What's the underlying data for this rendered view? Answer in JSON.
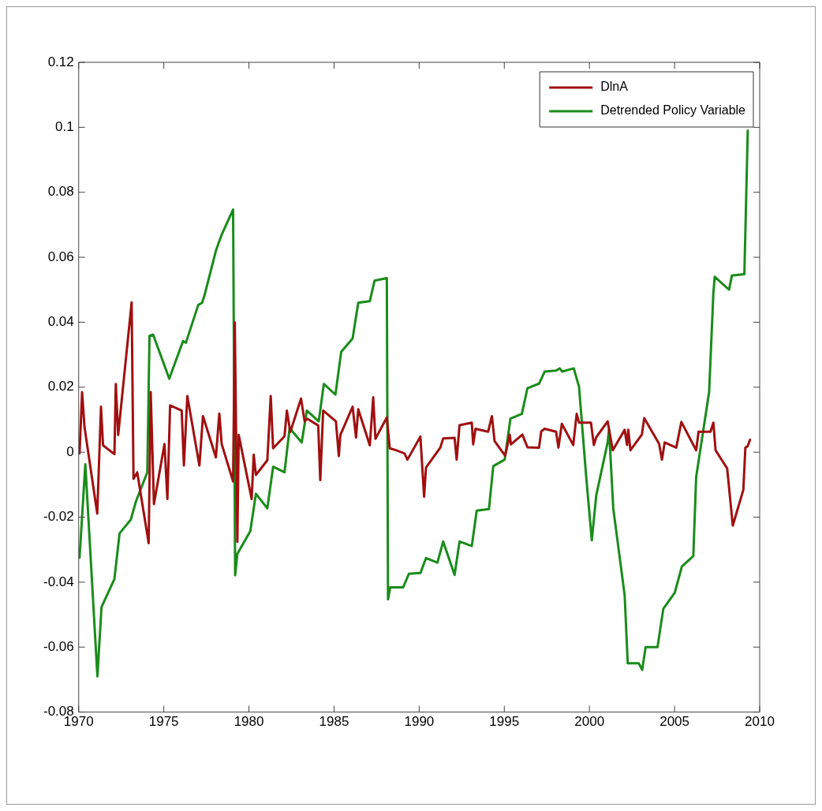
{
  "chart_data": {
    "type": "line",
    "xlim": [
      1970,
      2010
    ],
    "xticks": [
      1970,
      1975,
      1980,
      1985,
      1990,
      1995,
      2000,
      2005,
      2010
    ],
    "ylim": [
      -0.08,
      0.12
    ],
    "yticks": [
      -0.08,
      -0.06,
      -0.04,
      -0.02,
      0,
      0.02,
      0.04,
      0.06,
      0.08,
      0.1,
      0.12
    ],
    "grid": false,
    "legend": "top right",
    "marker": "none",
    "line_style": "solid",
    "series": [
      {
        "name": "DlnA",
        "color": "#a01010",
        "x": [
          1970.05,
          1970.2,
          1970.34,
          1971.09,
          1971.31,
          1971.43,
          1972.1,
          1972.18,
          1972.32,
          1973.11,
          1973.22,
          1973.44,
          1974.11,
          1974.23,
          1974.42,
          1975.04,
          1975.21,
          1975.37,
          1976.05,
          1976.18,
          1976.38,
          1977.09,
          1977.3,
          1978.06,
          1978.26,
          1978.4,
          1979.07,
          1979.17,
          1979.32,
          1979.4,
          1980.16,
          1980.28,
          1980.41,
          1981.08,
          1981.28,
          1981.42,
          1982.09,
          1982.23,
          1982.43,
          1983.06,
          1983.27,
          1983.43,
          1984.07,
          1984.19,
          1984.36,
          1985.11,
          1985.28,
          1985.37,
          1986.09,
          1986.29,
          1986.42,
          1987.1,
          1987.3,
          1987.43,
          1988.1,
          1988.27,
          1988.64,
          1989.14,
          1989.31,
          1990.07,
          1990.29,
          1990.4,
          1991.24,
          1991.41,
          1992.08,
          1992.2,
          1992.37,
          1993.09,
          1993.17,
          1993.31,
          1994.05,
          1994.27,
          1994.43,
          1995.05,
          1995.32,
          1995.39,
          1996.06,
          1996.36,
          1997.04,
          1997.17,
          1997.37,
          1998.04,
          1998.18,
          1998.38,
          1999.05,
          1999.25,
          1999.39,
          2000.09,
          2000.26,
          2000.4,
          2001.07,
          2001.37,
          2002.07,
          2002.21,
          2002.28,
          2002.41,
          2003.08,
          2003.22,
          2004.09,
          2004.26,
          2004.42,
          2005.1,
          2005.4,
          2006.27,
          2006.41,
          2007.11,
          2007.28,
          2007.41,
          2008.09,
          2008.42,
          2009.04,
          2009.16,
          2009.29,
          2009.43
        ],
        "values": [
          -0.0004,
          0.0185,
          0.0078,
          -0.0189,
          0.014,
          0.0021,
          -0.0006,
          0.021,
          0.0053,
          0.0461,
          -0.0082,
          -0.0062,
          -0.028,
          0.0185,
          -0.016,
          0.0025,
          -0.0144,
          0.0144,
          0.0128,
          -0.0041,
          0.0173,
          -0.0041,
          0.0111,
          -0.0016,
          0.0119,
          0.0025,
          -0.009,
          0.04,
          -0.0276,
          0.0053,
          -0.0144,
          -0.0008,
          -0.007,
          -0.0025,
          0.0173,
          0.0012,
          0.0049,
          0.0128,
          0.0062,
          0.0165,
          0.0095,
          0.0103,
          0.0082,
          -0.0086,
          0.0128,
          0.0095,
          -0.0012,
          0.0053,
          0.014,
          0.0045,
          0.0132,
          0.0021,
          0.0169,
          0.0041,
          0.0107,
          0.0012,
          0.0006,
          -0.0004,
          -0.0023,
          0.0048,
          -0.0137,
          -0.0047,
          0.0014,
          0.0042,
          0.0044,
          -0.0023,
          0.0083,
          0.0091,
          0.0024,
          0.0072,
          0.0063,
          0.0111,
          0.0034,
          -0.0011,
          0.0054,
          0.0024,
          0.0054,
          0.0015,
          0.0014,
          0.0064,
          0.0072,
          0.0063,
          0.0014,
          0.0087,
          0.0022,
          0.0118,
          0.0091,
          0.0091,
          0.0022,
          0.0046,
          0.0095,
          0.0006,
          0.0069,
          0.0022,
          0.0069,
          0.0006,
          0.0054,
          0.0105,
          0.0026,
          -0.0023,
          0.003,
          0.0014,
          0.0093,
          0.0006,
          0.0063,
          0.0063,
          0.0091,
          0.0006,
          -0.005,
          -0.0226,
          -0.0116,
          0.0014,
          0.0018,
          0.0038
        ]
      },
      {
        "name": "Detrended Policy Variable",
        "color": "#1a8c1a",
        "x": [
          1970.05,
          1970.39,
          1971.1,
          1971.34,
          1972.1,
          1972.4,
          1973.06,
          1973.36,
          1974.03,
          1974.16,
          1974.37,
          1975.32,
          1976.13,
          1976.3,
          1977.02,
          1977.25,
          1977.39,
          1978.06,
          1978.4,
          1979.07,
          1979.19,
          1979.32,
          1980.08,
          1980.41,
          1981.08,
          1981.42,
          1982.09,
          1982.39,
          1983.1,
          1983.4,
          1984.1,
          1984.4,
          1985.08,
          1985.42,
          1986.09,
          1986.42,
          1987.1,
          1987.38,
          1988.1,
          1988.17,
          1988.3,
          1989.06,
          1989.4,
          1990.07,
          1990.4,
          1991.07,
          1991.41,
          1992.08,
          1992.37,
          1993.09,
          1993.38,
          1994.1,
          1994.35,
          1995.02,
          1995.36,
          1996.03,
          1996.36,
          1997.04,
          1997.37,
          1998.04,
          1998.25,
          1998.41,
          1999.08,
          1999.39,
          1999.81,
          2000.14,
          2000.4,
          2001.07,
          2001.15,
          2001.4,
          2002.07,
          2002.25,
          2002.9,
          2003.1,
          2003.3,
          2004.0,
          2004.34,
          2005.01,
          2005.43,
          2006.1,
          2006.27,
          2007.03,
          2007.28,
          2007.36,
          2008.2,
          2008.37,
          2009.1,
          2009.16,
          2009.3
        ],
        "values": [
          -0.0325,
          -0.0037,
          -0.069,
          -0.0477,
          -0.039,
          -0.025,
          -0.0208,
          -0.0152,
          -0.0062,
          0.0358,
          0.0362,
          0.0226,
          0.0342,
          0.0337,
          0.0453,
          0.046,
          0.0483,
          0.062,
          0.067,
          0.0747,
          -0.0379,
          -0.0313,
          -0.0243,
          -0.0128,
          -0.0173,
          -0.0045,
          -0.0062,
          0.0074,
          0.003,
          0.0128,
          0.0095,
          0.021,
          0.0177,
          0.0309,
          0.035,
          0.046,
          0.0465,
          0.0528,
          0.0536,
          -0.0453,
          -0.0416,
          -0.0416,
          -0.0374,
          -0.0372,
          -0.0326,
          -0.034,
          -0.0275,
          -0.0378,
          -0.0275,
          -0.0289,
          -0.018,
          -0.0175,
          -0.0043,
          -0.0023,
          0.0103,
          0.0118,
          0.0197,
          0.0211,
          0.0248,
          0.0251,
          0.0258,
          0.0248,
          0.0258,
          0.0201,
          -0.0076,
          -0.0271,
          -0.0133,
          0.003,
          0.0071,
          -0.0173,
          -0.0441,
          -0.065,
          -0.065,
          -0.067,
          -0.06,
          -0.06,
          -0.0482,
          -0.0433,
          -0.0352,
          -0.032,
          -0.0076,
          0.0185,
          0.049,
          0.054,
          0.05,
          0.0544,
          0.0548,
          0.0678,
          0.099
        ]
      }
    ]
  }
}
